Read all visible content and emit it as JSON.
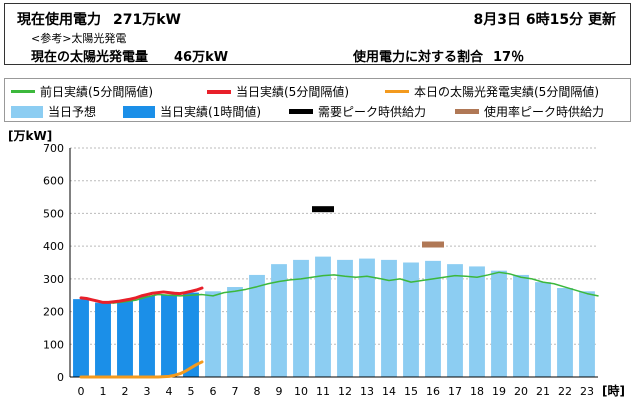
{
  "header": {
    "usage_label": "現在使用電力",
    "usage_value": "271万kW",
    "updated": "8月3日  6時15分  更新",
    "reference": "<参考>太陽光発電",
    "solar_label": "現在の太陽光発電量",
    "solar_value": "46万kW",
    "ratio_label": "使用電力に対する割合",
    "ratio_value": "17％"
  },
  "legend": {
    "prev_day": "前日実績(5分間隔値)",
    "today_5min": "当日実績(5分間隔値)",
    "solar_today": "本日の太陽光発電実績(5分間隔値)",
    "forecast": "当日予想",
    "today_hourly": "当日実績(1時間値)",
    "peak_demand": "需要ピーク時供給力",
    "peak_rate": "使用率ピーク時供給力"
  },
  "colors": {
    "forecast": "#8ccdf2",
    "today_hourly": "#1b8fe8",
    "prev_day": "#3cb83c",
    "today_5min": "#e8202a",
    "solar_today": "#f39a1e",
    "peak_demand": "#000000",
    "peak_rate": "#b07856"
  },
  "chart_data": {
    "type": "bar",
    "ylabel": "[万kW]",
    "xlabel": "[時]",
    "ylim": [
      0,
      700
    ],
    "yticks": [
      0,
      100,
      200,
      300,
      400,
      500,
      600,
      700
    ],
    "categories": [
      "0",
      "1",
      "2",
      "3",
      "4",
      "5",
      "6",
      "7",
      "8",
      "9",
      "10",
      "11",
      "12",
      "13",
      "14",
      "15",
      "16",
      "17",
      "18",
      "19",
      "20",
      "21",
      "22",
      "23"
    ],
    "grid": true,
    "series": [
      {
        "name": "当日予想",
        "kind": "bar",
        "values": [
          232,
          232,
          232,
          240,
          250,
          255,
          262,
          275,
          312,
          345,
          358,
          368,
          358,
          362,
          358,
          350,
          355,
          345,
          338,
          325,
          312,
          290,
          272,
          262
        ]
      },
      {
        "name": "当日実績(1時間値)",
        "kind": "bar",
        "values": [
          238,
          226,
          232,
          248,
          252,
          258,
          null,
          null,
          null,
          null,
          null,
          null,
          null,
          null,
          null,
          null,
          null,
          null,
          null,
          null,
          null,
          null,
          null,
          null
        ]
      },
      {
        "name": "前日実績(5分間隔値)",
        "kind": "line",
        "x": [
          0,
          0.5,
          1,
          1.5,
          2,
          2.5,
          3,
          3.5,
          4,
          4.5,
          5,
          5.5,
          6,
          6.5,
          7,
          7.5,
          8,
          8.5,
          9,
          9.5,
          10,
          10.5,
          11,
          11.5,
          12,
          12.5,
          13,
          13.5,
          14,
          14.5,
          15,
          15.5,
          16,
          16.5,
          17,
          17.5,
          18,
          18.5,
          19,
          19.5,
          20,
          20.5,
          21,
          21.5,
          22,
          22.5,
          23,
          23.5
        ],
        "values": [
          242,
          236,
          228,
          226,
          230,
          235,
          245,
          252,
          250,
          248,
          250,
          252,
          248,
          258,
          262,
          268,
          276,
          285,
          292,
          297,
          300,
          305,
          310,
          312,
          308,
          305,
          308,
          302,
          295,
          300,
          290,
          295,
          300,
          305,
          310,
          308,
          305,
          312,
          320,
          315,
          305,
          300,
          290,
          285,
          275,
          265,
          255,
          248
        ]
      },
      {
        "name": "当日実績(5分間隔値)",
        "kind": "line",
        "x": [
          0,
          0.25,
          0.5,
          0.75,
          1,
          1.25,
          1.5,
          1.75,
          2,
          2.25,
          2.5,
          2.75,
          3,
          3.25,
          3.5,
          3.75,
          4,
          4.25,
          4.5,
          4.75,
          5,
          5.25,
          5.5
        ],
        "values": [
          242,
          240,
          236,
          232,
          228,
          228,
          230,
          232,
          235,
          238,
          242,
          248,
          252,
          256,
          258,
          260,
          258,
          256,
          255,
          258,
          262,
          266,
          272
        ]
      },
      {
        "name": "本日の太陽光発電実績(5分間隔値)",
        "kind": "line",
        "x": [
          0,
          0.5,
          1,
          1.5,
          2,
          2.5,
          3,
          3.5,
          4,
          4.25,
          4.5,
          4.75,
          5,
          5.25,
          5.5
        ],
        "values": [
          0,
          0,
          0,
          0,
          0,
          0,
          0,
          0,
          2,
          5,
          10,
          18,
          28,
          38,
          46
        ]
      },
      {
        "name": "需要ピーク時供給力",
        "kind": "marker",
        "x": 11,
        "value": 513
      },
      {
        "name": "使用率ピーク時供給力",
        "kind": "marker",
        "x": 16,
        "value": 405
      }
    ]
  }
}
